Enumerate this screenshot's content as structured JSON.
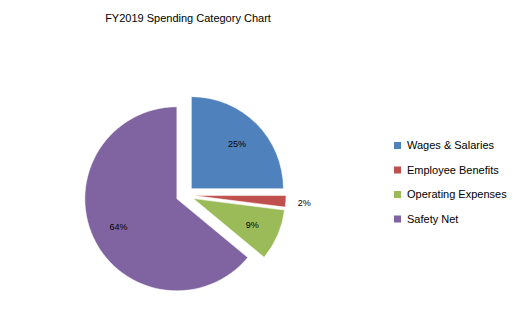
{
  "chart_data": {
    "type": "pie",
    "title": "FY2019 Spending Category Chart",
    "categories": [
      "Wages & Salaries",
      "Employee Benefits",
      "Operating Expenses",
      "Safety Net"
    ],
    "values": [
      25,
      2,
      9,
      64
    ],
    "value_labels": [
      "25%",
      "2%",
      "9%",
      "64%"
    ],
    "colors": [
      "#4f81bd",
      "#c0504d",
      "#9bbb59",
      "#8064a2"
    ],
    "data_labels": true,
    "legend": "right"
  }
}
